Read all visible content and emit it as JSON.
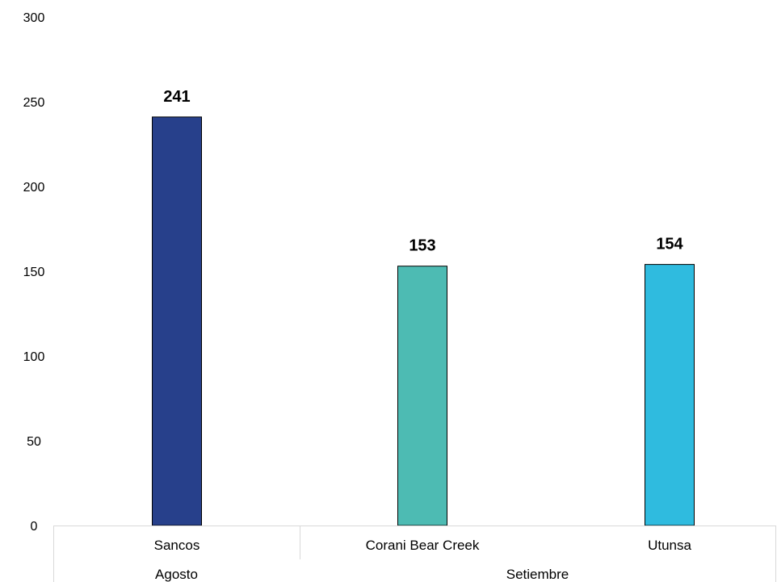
{
  "chart_data": {
    "type": "bar",
    "categories": [
      "Sancos",
      "Corani Bear Creek",
      "Utunsa"
    ],
    "groups": [
      {
        "label": "Agosto",
        "categories": [
          "Sancos"
        ]
      },
      {
        "label": "Setiembre",
        "categories": [
          "Corani Bear Creek",
          "Utunsa"
        ]
      }
    ],
    "values": [
      241,
      153,
      154
    ],
    "data_labels": [
      "241",
      "153",
      "154"
    ],
    "colors": [
      "#27408b",
      "#4dbbb3",
      "#2fbbdf"
    ],
    "ylim": [
      0,
      300
    ],
    "yticks": [
      "0",
      "50",
      "100",
      "150",
      "200",
      "250",
      "300"
    ],
    "grid": false,
    "legend": "none",
    "title": "",
    "xlabel": "",
    "ylabel": ""
  }
}
